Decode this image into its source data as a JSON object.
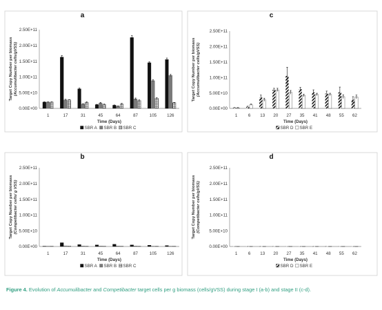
{
  "caption": {
    "lead": "Figure 4.",
    "t1": " Evolution of ",
    "i1": "Accumulibacter",
    "t2": " and ",
    "i2": "Competibacter",
    "t3": " target cells per g biomass (cells/gVSS) during stage I (a-b) and stage II (c-d)."
  },
  "colors": {
    "sbr_a": "#111111",
    "sbr_b": "#7a7a7a",
    "sbr_c": "hatch-grid",
    "sbr_d": "hatch-diagonal",
    "sbr_e": "#ffffff",
    "caption": "#2f9e80"
  },
  "chart_data": [
    {
      "panel": "a",
      "type": "bar",
      "xlabel": "Time (Days)",
      "ylabel": [
        "Target Copy Number per biomass",
        "(Accumulibacter cells/gVSS)"
      ],
      "y_ticks": [
        "0.00E+00",
        "5.00E+10",
        "1.00E+11",
        "1.50E+11",
        "2.00E+11",
        "2.50E+11"
      ],
      "ylim": [
        0,
        250000000000
      ],
      "categories": [
        "1",
        "17",
        "31",
        "45",
        "64",
        "87",
        "105",
        "126"
      ],
      "legend": [
        "SBR A",
        "SBR B",
        "SBR C"
      ],
      "legend_position": "bottom",
      "series": [
        {
          "name": "SBR A",
          "values": [
            20000000000,
            163000000000,
            62000000000,
            12000000000,
            10000000000,
            225000000000,
            145000000000,
            155000000000
          ],
          "errors": [
            1000000000,
            5000000000,
            3000000000,
            1000000000,
            1000000000,
            6000000000,
            3000000000,
            5000000000
          ]
        },
        {
          "name": "SBR B",
          "values": [
            20000000000,
            27000000000,
            14000000000,
            17000000000,
            7000000000,
            30000000000,
            88000000000,
            105000000000
          ],
          "errors": [
            1000000000,
            2000000000,
            1000000000,
            2000000000,
            1000000000,
            3000000000,
            3000000000,
            3000000000
          ]
        },
        {
          "name": "SBR C",
          "values": [
            20000000000,
            27000000000,
            19000000000,
            12000000000,
            14000000000,
            25000000000,
            32000000000,
            18000000000
          ],
          "errors": [
            1000000000,
            1000000000,
            2000000000,
            2000000000,
            2000000000,
            2000000000,
            2000000000,
            1000000000
          ]
        }
      ]
    },
    {
      "panel": "b",
      "type": "bar",
      "xlabel": "Time (Days)",
      "ylabel": [
        "Target Copy Number per biomass",
        "(Competibacter cells/ g VSS)"
      ],
      "y_ticks": [
        "0.00E+00",
        "5.00E+10",
        "1.00E+11",
        "1.50E+11",
        "2.00E+11",
        "2.50E+11"
      ],
      "ylim": [
        0,
        250000000000
      ],
      "categories": [
        "1",
        "17",
        "31",
        "45",
        "64",
        "87",
        "105",
        "126"
      ],
      "legend": [
        "SBR A",
        "SBR B",
        "SBR C"
      ],
      "legend_position": "bottom",
      "series": [
        {
          "name": "SBR A",
          "values": [
            1000000000,
            12000000000,
            6000000000,
            5000000000,
            7000000000,
            5000000000,
            4000000000,
            3000000000
          ]
        },
        {
          "name": "SBR B",
          "values": [
            1000000000,
            2000000000,
            1500000000,
            1500000000,
            1500000000,
            1500000000,
            1000000000,
            1000000000
          ]
        },
        {
          "name": "SBR C",
          "values": [
            1000000000,
            1500000000,
            1000000000,
            1000000000,
            1000000000,
            1000000000,
            1000000000,
            1000000000
          ]
        }
      ]
    },
    {
      "panel": "c",
      "type": "bar",
      "xlabel": "Time (Days)",
      "ylabel": [
        "Target Copy Number per biomass",
        "(Accumulibacter cells/gVSS)"
      ],
      "y_ticks": [
        "0.00E+00",
        "5.00E+10",
        "1.00E+11",
        "1.50E+11",
        "2.00E+11",
        "2.50E+11"
      ],
      "ylim": [
        0,
        250000000000
      ],
      "categories": [
        "1",
        "6",
        "13",
        "20",
        "27",
        "35",
        "41",
        "48",
        "55",
        "62"
      ],
      "legend": [
        "SBR D",
        "SBR E"
      ],
      "legend_position": "bottom",
      "series": [
        {
          "name": "SBR D",
          "values": [
            2000000000,
            5000000000,
            35000000000,
            60000000000,
            105000000000,
            62000000000,
            52000000000,
            48000000000,
            52000000000,
            28000000000
          ],
          "errors": [
            1000000000,
            2000000000,
            8000000000,
            5000000000,
            28000000000,
            6000000000,
            8000000000,
            8000000000,
            17000000000,
            10000000000
          ]
        },
        {
          "name": "SBR E",
          "values": [
            2000000000,
            12000000000,
            28000000000,
            60000000000,
            52000000000,
            42000000000,
            45000000000,
            45000000000,
            38000000000,
            37000000000
          ],
          "errors": [
            1000000000,
            2000000000,
            5000000000,
            5000000000,
            6000000000,
            4000000000,
            4000000000,
            4000000000,
            6000000000,
            6000000000
          ]
        }
      ]
    },
    {
      "panel": "d",
      "type": "bar",
      "xlabel": "Time (Days)",
      "ylabel": [
        "Target Copy Number per biomass",
        "(Competibacter cells/gVSS)"
      ],
      "y_ticks": [
        "0.00E+00",
        "5.00E+10",
        "1.00E+11",
        "1.50E+11",
        "2.00E+11",
        "2.50E+11"
      ],
      "ylim": [
        0,
        250000000000
      ],
      "categories": [
        "1",
        "6",
        "13",
        "20",
        "27",
        "35",
        "41",
        "48",
        "55",
        "62"
      ],
      "legend": [
        "SBR D",
        "SBR E"
      ],
      "legend_position": "bottom",
      "series": [
        {
          "name": "SBR D",
          "values": [
            500000000,
            500000000,
            500000000,
            500000000,
            500000000,
            500000000,
            500000000,
            500000000,
            500000000,
            500000000
          ]
        },
        {
          "name": "SBR E",
          "values": [
            500000000,
            500000000,
            500000000,
            500000000,
            500000000,
            500000000,
            500000000,
            500000000,
            500000000,
            500000000
          ]
        }
      ]
    }
  ]
}
